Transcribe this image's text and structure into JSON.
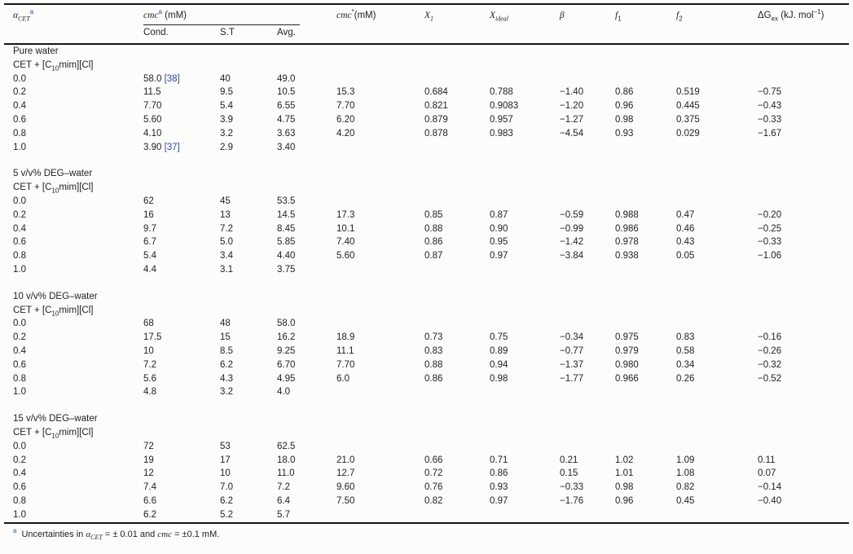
{
  "colors": {
    "background": "#fcfcfa",
    "text": "#1f1f1f",
    "rule": "#161616",
    "link_blue": "#374a9e"
  },
  "header": {
    "alpha_symbol": "α",
    "alpha_sub": "CET",
    "footnote_marker": "a",
    "cmc_label": "cmc",
    "cmc_unit": " (mM)",
    "cond": "Cond.",
    "st": "S.T",
    "avg": "Avg.",
    "cmc_star_label": "cmc",
    "cmc_star_sup": "*",
    "cmc_star_unit": "(mM)",
    "x1_label": "X",
    "x1_sub": "1",
    "xideal_label": "X",
    "xideal_sub": "ideal",
    "beta": "β",
    "f1_label": "f",
    "f1_sub": "1",
    "f2_label": "f",
    "f2_sub": "2",
    "dgex_prefix": "ΔG",
    "dgex_sub": "ex",
    "dgex_unit_pre": " (kJ. mol",
    "dgex_sup": "−1",
    "dgex_unit_post": ")"
  },
  "sections": [
    {
      "solvent": "Pure water",
      "system_pre": "CET + [C",
      "system_sub": "10",
      "system_post": "mim][Cl]",
      "rows": [
        {
          "cells": [
            "0.0",
            "58.0",
            "40",
            "49.0",
            "",
            "",
            "",
            "",
            "",
            "",
            ""
          ],
          "ref": "[38]"
        },
        {
          "cells": [
            "0.2",
            "11.5",
            "9.5",
            "10.5",
            "15.3",
            "0.684",
            "0.788",
            "−1.40",
            "0.86",
            "0.519",
            "−0.75"
          ]
        },
        {
          "cells": [
            "0.4",
            "7.70",
            "5.4",
            "6.55",
            "7.70",
            "0.821",
            "0.9083",
            "−1.20",
            "0.96",
            "0.445",
            "−0.43"
          ]
        },
        {
          "cells": [
            "0.6",
            "5.60",
            "3.9",
            "4.75",
            "6.20",
            "0.879",
            "0.957",
            "−1.27",
            "0.98",
            "0.375",
            "−0.33"
          ]
        },
        {
          "cells": [
            "0.8",
            "4.10",
            "3.2",
            "3.63",
            "4.20",
            "0.878",
            "0.983",
            "−4.54",
            "0.93",
            "0.029",
            "−1.67"
          ]
        },
        {
          "cells": [
            "1.0",
            "3.90",
            "2.9",
            "3.40",
            "",
            "",
            "",
            "",
            "",
            "",
            ""
          ],
          "ref": "[37]"
        }
      ]
    },
    {
      "solvent": "5 v/v% DEG–water",
      "system_pre": "CET + [C",
      "system_sub": "10",
      "system_post": "mim][Cl]",
      "rows": [
        {
          "cells": [
            "0.0",
            "62",
            "45",
            "53.5",
            "",
            "",
            "",
            "",
            "",
            "",
            ""
          ]
        },
        {
          "cells": [
            "0.2",
            "16",
            "13",
            "14.5",
            "17.3",
            "0.85",
            "0.87",
            "−0.59",
            "0.988",
            "0.47",
            "−0.20"
          ]
        },
        {
          "cells": [
            "0.4",
            "9.7",
            "7.2",
            "8.45",
            "10.1",
            "0.88",
            "0.90",
            "−0.99",
            "0.986",
            "0.46",
            "−0.25"
          ]
        },
        {
          "cells": [
            "0.6",
            "6.7",
            "5.0",
            "5.85",
            "7.40",
            "0.86",
            "0.95",
            "−1.42",
            "0.978",
            "0.43",
            "−0.33"
          ]
        },
        {
          "cells": [
            "0.8",
            "5.4",
            "3.4",
            "4.40",
            "5.60",
            "0.87",
            "0.97",
            "−3.84",
            "0.938",
            "0.05",
            "−1.06"
          ]
        },
        {
          "cells": [
            "1.0",
            "4.4",
            "3.1",
            "3.75",
            "",
            "",
            "",
            "",
            "",
            "",
            ""
          ]
        }
      ]
    },
    {
      "solvent": "10 v/v% DEG–water",
      "system_pre": "CET + [C",
      "system_sub": "10",
      "system_post": "mim][Cl]",
      "rows": [
        {
          "cells": [
            "0.0",
            "68",
            "48",
            "58.0",
            "",
            "",
            "",
            "",
            "",
            "",
            ""
          ]
        },
        {
          "cells": [
            "0.2",
            "17.5",
            "15",
            "16.2",
            "18.9",
            "0.73",
            "0.75",
            "−0.34",
            "0.975",
            "0.83",
            "−0.16"
          ]
        },
        {
          "cells": [
            "0.4",
            "10",
            "8.5",
            "9.25",
            "11.1",
            "0.83",
            "0.89",
            "−0.77",
            "0.979",
            "0.58",
            "−0.26"
          ]
        },
        {
          "cells": [
            "0.6",
            "7.2",
            "6.2",
            "6.70",
            "7.70",
            "0.88",
            "0.94",
            "−1.37",
            "0.980",
            "0.34",
            "−0.32"
          ]
        },
        {
          "cells": [
            "0.8",
            "5.6",
            "4.3",
            "4.95",
            "6.0",
            "0.86",
            "0.98",
            "−1.77",
            "0.966",
            "0.26",
            "−0.52"
          ]
        },
        {
          "cells": [
            "1.0",
            "4.8",
            "3.2",
            "4.0",
            "",
            "",
            "",
            "",
            "",
            "",
            ""
          ]
        }
      ]
    },
    {
      "solvent": "15 v/v% DEG–water",
      "system_pre": "CET + [C",
      "system_sub": "10",
      "system_post": "mim][Cl]",
      "rows": [
        {
          "cells": [
            "0.0",
            "72",
            "53",
            "62.5",
            "",
            "",
            "",
            "",
            "",
            "",
            ""
          ]
        },
        {
          "cells": [
            "0.2",
            "19",
            "17",
            "18.0",
            "21.0",
            "0.66",
            "0.71",
            "0.21",
            "1.02",
            "1.09",
            "0.11"
          ]
        },
        {
          "cells": [
            "0.4",
            "12",
            "10",
            "11.0",
            "12.7",
            "0.72",
            "0.86",
            "0.15",
            "1.01",
            "1.08",
            "0.07"
          ]
        },
        {
          "cells": [
            "0.6",
            "7.4",
            "7.0",
            "7.2",
            "9.60",
            "0.76",
            "0.93",
            "−0.33",
            "0.98",
            "0.82",
            "−0.14"
          ]
        },
        {
          "cells": [
            "0.8",
            "6.6",
            "6.2",
            "6.4",
            "7.50",
            "0.82",
            "0.97",
            "−1.76",
            "0.96",
            "0.45",
            "−0.40"
          ]
        },
        {
          "cells": [
            "1.0",
            "6.2",
            "5.2",
            "5.7",
            "",
            "",
            "",
            "",
            "",
            "",
            ""
          ]
        }
      ]
    }
  ],
  "footnote": {
    "marker": "a",
    "text_pre": "Uncertainties in ",
    "alpha_symbol": "α",
    "alpha_sub": "CET",
    "text_mid": " = ± 0.01 and ",
    "cmc_label": "cmc",
    "text_post": " = ±0.1 mM."
  }
}
